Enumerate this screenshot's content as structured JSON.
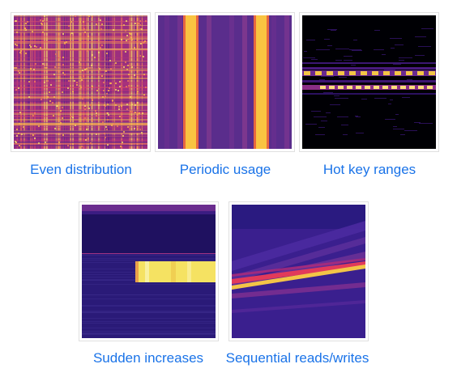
{
  "gallery": {
    "accent_color": "#1a73e8",
    "items": [
      {
        "label": "Even distribution",
        "pattern": "even"
      },
      {
        "label": "Periodic usage",
        "pattern": "periodic"
      },
      {
        "label": "Hot key ranges",
        "pattern": "hot-key"
      },
      {
        "label": "Sudden increases",
        "pattern": "sudden"
      },
      {
        "label": "Sequential reads/writes",
        "pattern": "sequential"
      }
    ]
  }
}
